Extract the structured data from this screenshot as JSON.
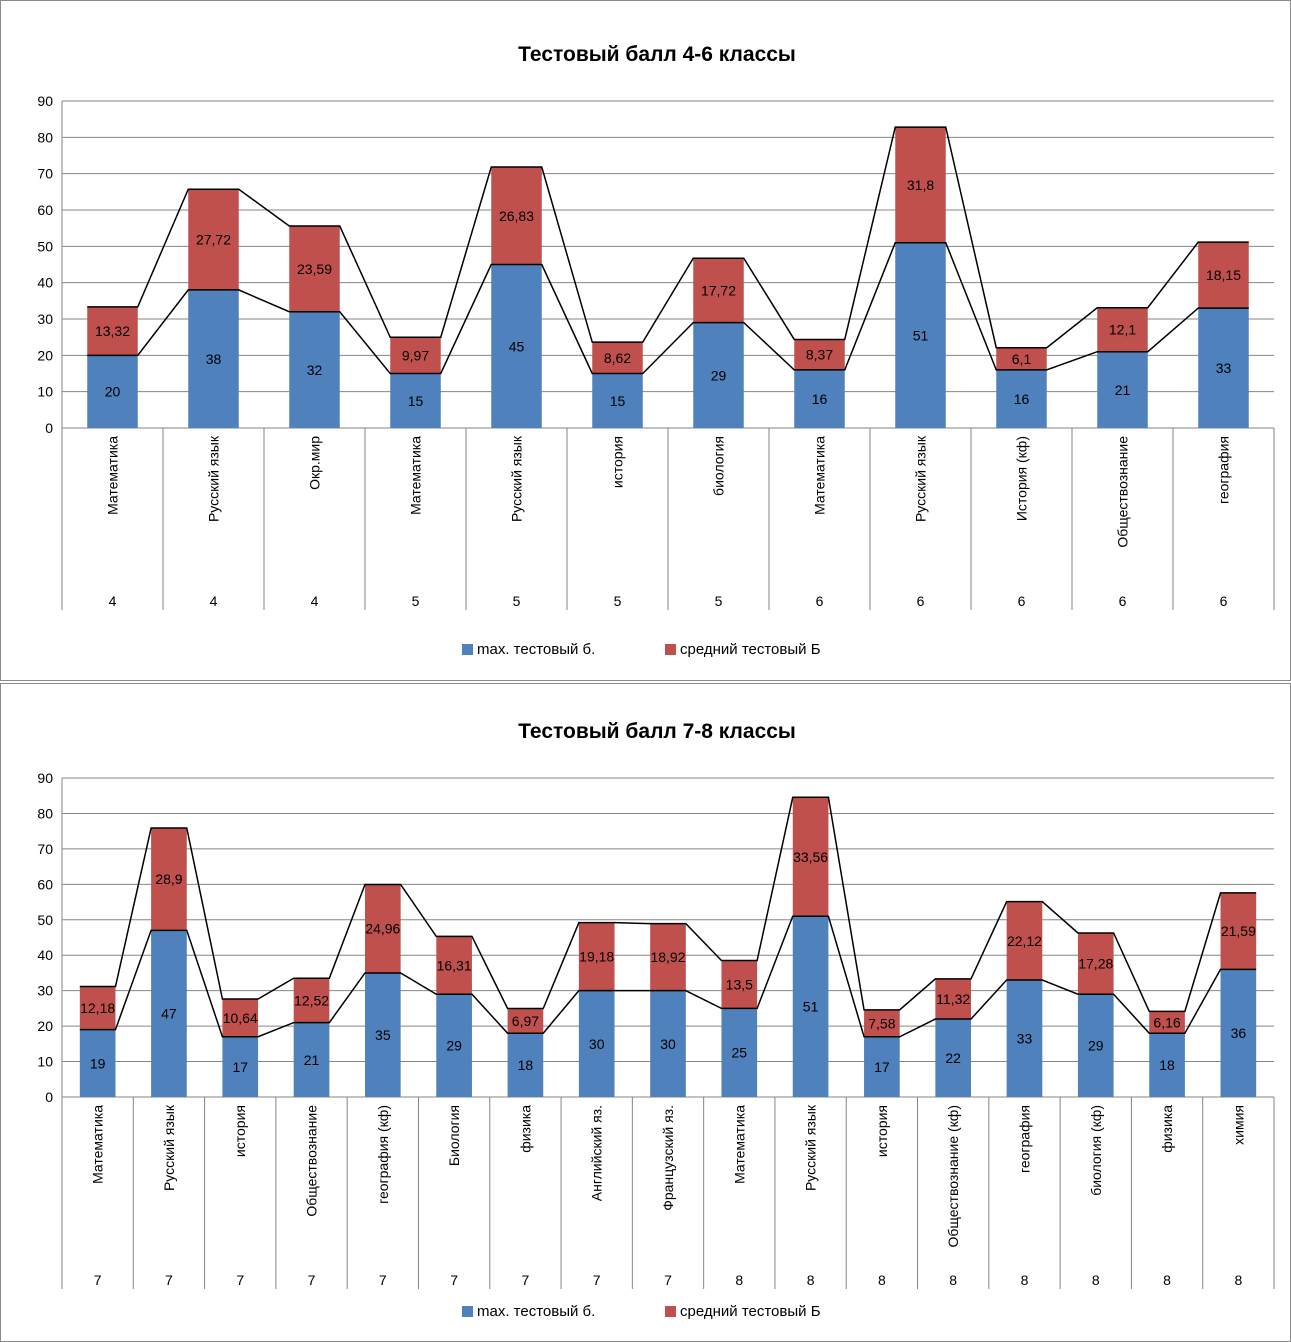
{
  "colors": {
    "max": "#4F81BD",
    "avg": "#C0504D",
    "grid": "#868686",
    "line": "#000000"
  },
  "chart_data": [
    {
      "type": "bar",
      "stacked": true,
      "title": "Тестовый балл  4-6 классы",
      "ylim": [
        0,
        90
      ],
      "yticks": [
        0,
        10,
        20,
        30,
        40,
        50,
        60,
        70,
        80,
        90
      ],
      "grid": true,
      "legend_position": "bottom",
      "categories": [
        "Математика",
        "Русский язык",
        "Окр.мир",
        "Математика",
        "Русский язык",
        "история",
        "биология",
        "Математика",
        "Русский язык",
        "История (кф)",
        "Обществознание",
        "география"
      ],
      "groups": [
        "4",
        "4",
        "4",
        "5",
        "5",
        "5",
        "5",
        "6",
        "6",
        "6",
        "6",
        "6"
      ],
      "series": [
        {
          "name": "max. тестовый б.",
          "values": [
            20,
            38,
            32,
            15,
            45,
            15,
            29,
            16,
            51,
            16,
            21,
            33
          ],
          "labels": [
            "20",
            "38",
            "32",
            "15",
            "45",
            "15",
            "29",
            "16",
            "51",
            "16",
            "21",
            "33"
          ]
        },
        {
          "name": "средний тестовый Б",
          "values": [
            13.32,
            27.72,
            23.59,
            9.97,
            26.83,
            8.62,
            17.72,
            8.37,
            31.8,
            6.1,
            12.1,
            18.15
          ],
          "labels": [
            "13,32",
            "27,72",
            "23,59",
            "9,97",
            "26,83",
            "8,62",
            "17,72",
            "8,37",
            "31,8",
            "6,1",
            "12,1",
            "18,15"
          ]
        }
      ]
    },
    {
      "type": "bar",
      "stacked": true,
      "title": "Тестовый балл  7-8 классы",
      "ylim": [
        0,
        90
      ],
      "yticks": [
        0,
        10,
        20,
        30,
        40,
        50,
        60,
        70,
        80,
        90
      ],
      "grid": true,
      "legend_position": "bottom",
      "categories": [
        "Математика",
        "Русский язык",
        "история",
        "Обществознание",
        "география (кф)",
        "Биология",
        "физика",
        "Английский яз.",
        "Французский яз.",
        "Математика",
        "Русский язык",
        "история",
        "Обществознание (кф)",
        "география",
        "биология (кф)",
        "физика",
        "химия"
      ],
      "groups": [
        "7",
        "7",
        "7",
        "7",
        "7",
        "7",
        "7",
        "7",
        "7",
        "8",
        "8",
        "8",
        "8",
        "8",
        "8",
        "8",
        "8"
      ],
      "series": [
        {
          "name": "max. тестовый б.",
          "values": [
            19,
            47,
            17,
            21,
            35,
            29,
            18,
            30,
            30,
            25,
            51,
            17,
            22,
            33,
            29,
            18,
            36
          ],
          "labels": [
            "19",
            "47",
            "17",
            "21",
            "35",
            "29",
            "18",
            "30",
            "30",
            "25",
            "51",
            "17",
            "22",
            "33",
            "29",
            "18",
            "36"
          ]
        },
        {
          "name": "средний тестовый Б",
          "values": [
            12.18,
            28.9,
            10.64,
            12.52,
            24.96,
            16.31,
            6.97,
            19.18,
            18.92,
            13.5,
            33.56,
            7.58,
            11.32,
            22.12,
            17.28,
            6.16,
            21.59
          ],
          "labels": [
            "12,18",
            "28,9",
            "10,64",
            "12,52",
            "24,96",
            "16,31",
            "6,97",
            "19,18",
            "18,92",
            "13,5",
            "33,56",
            "7,58",
            "11,32",
            "22,12",
            "17,28",
            "6,16",
            "21,59"
          ]
        }
      ]
    }
  ]
}
